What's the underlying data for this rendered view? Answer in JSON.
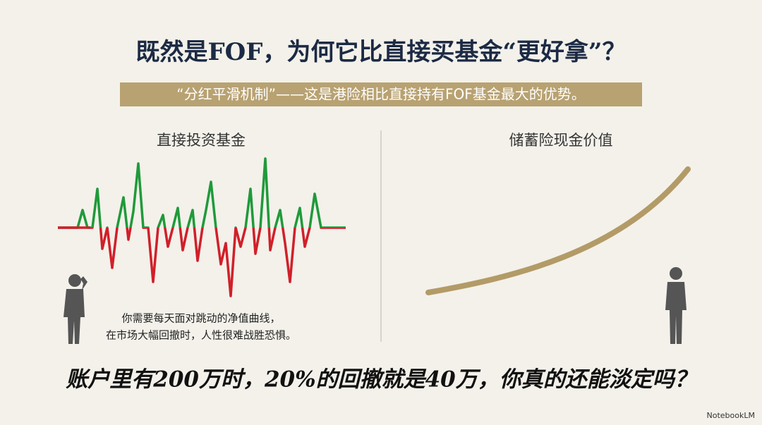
{
  "title": "既然是FOF，为何它比直接买基金“更好拿”？",
  "subtitle": "“分红平滑机制”——这是港险相比直接持有FOF基金最大的优势。",
  "left": {
    "heading": "直接投资基金",
    "caption": [
      "你需要每天面对跳动的净值曲线，",
      "在市场大幅回撤时，人性很难战胜恐惧。"
    ]
  },
  "right": {
    "heading": "储蓄险现金价值"
  },
  "question": "账户里有200万时，20%的回撤就是40万，你真的还能淡定吗？",
  "brand": "NotebookLM"
}
